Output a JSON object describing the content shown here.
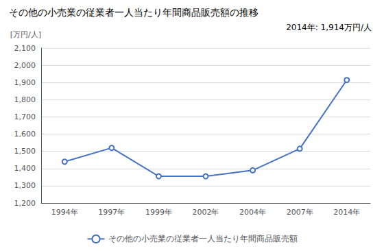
{
  "chart_data": {
    "type": "line",
    "title": "その他の小売業の従業者一人当たり年間商品販売額の推移",
    "ylabel": "[万円/人]",
    "annotation": "2014年: 1,914万円/人",
    "categories": [
      "1994年",
      "1997年",
      "1999年",
      "2002年",
      "2004年",
      "2007年",
      "2014年"
    ],
    "series": [
      {
        "name": "その他の小売業の従業者一人当たり年間商品販売額",
        "color": "#4472C4",
        "marker": "circle",
        "values": [
          1440,
          1520,
          1355,
          1355,
          1390,
          1515,
          1914
        ]
      }
    ],
    "ylim": [
      1200,
      2100
    ],
    "yticks": [
      {
        "value": 1200,
        "label": "1,200"
      },
      {
        "value": 1300,
        "label": "1,300"
      },
      {
        "value": 1400,
        "label": "1,400"
      },
      {
        "value": 1500,
        "label": "1,500"
      },
      {
        "value": 1600,
        "label": "1,600"
      },
      {
        "value": 1700,
        "label": "1,700"
      },
      {
        "value": 1800,
        "label": "1,800"
      },
      {
        "value": 1900,
        "label": "1,900"
      },
      {
        "value": 2000,
        "label": "2,000"
      },
      {
        "value": 2100,
        "label": "2,100"
      }
    ],
    "grid": true,
    "legend": "bottom"
  }
}
